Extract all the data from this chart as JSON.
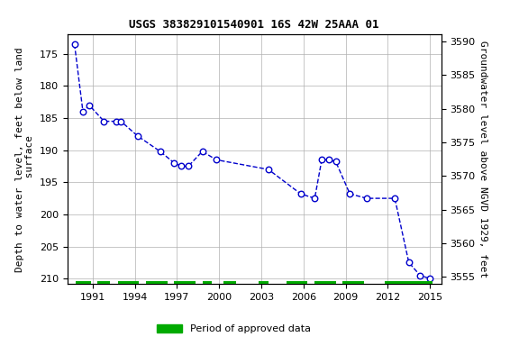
{
  "title": "USGS 383829101540901 16S 42W 25AAA 01",
  "ylabel_left": "Depth to water level, feet below land\n surface",
  "ylabel_right": "Groundwater level above NGVD 1929, feet",
  "data_x": [
    1989.7,
    1990.3,
    1990.75,
    1991.8,
    1992.7,
    1993.0,
    1994.2,
    1995.8,
    1996.8,
    1997.3,
    1997.8,
    1998.8,
    1999.8,
    2003.5,
    2005.8,
    2006.8,
    2007.3,
    2007.8,
    2008.3,
    2009.3,
    2010.5,
    2012.5,
    2013.5,
    2014.3,
    2015.0
  ],
  "data_y": [
    173.5,
    184.0,
    183.0,
    185.5,
    185.5,
    185.5,
    187.8,
    190.2,
    192.0,
    192.5,
    192.5,
    190.2,
    191.5,
    193.0,
    196.8,
    197.5,
    191.5,
    191.5,
    191.8,
    196.8,
    197.5,
    197.5,
    207.5,
    209.5,
    210.0
  ],
  "line_color": "#0000cc",
  "marker_color": "#0000cc",
  "marker_face": "white",
  "ylim_bottom": 210.8,
  "ylim_top": 172.0,
  "xlim": [
    1989.2,
    2015.8
  ],
  "yticks_left": [
    175,
    180,
    185,
    190,
    195,
    200,
    205,
    210
  ],
  "yticks_right": [
    3590,
    3585,
    3580,
    3575,
    3570,
    3565,
    3560,
    3555
  ],
  "xticks": [
    1991,
    1994,
    1997,
    2000,
    2003,
    2006,
    2009,
    2012,
    2015
  ],
  "grid_color": "#b0b0b0",
  "bg_color": "#ffffff",
  "title_fontsize": 9,
  "axis_label_fontsize": 8,
  "tick_fontsize": 8,
  "green_bars": [
    [
      1989.8,
      1990.85
    ],
    [
      1991.3,
      1992.2
    ],
    [
      1992.8,
      1994.3
    ],
    [
      1994.8,
      1996.3
    ],
    [
      1996.8,
      1998.3
    ],
    [
      1998.8,
      1999.5
    ],
    [
      2000.3,
      2001.2
    ],
    [
      2002.8,
      2003.5
    ],
    [
      2004.8,
      2006.3
    ],
    [
      2006.8,
      2008.3
    ],
    [
      2008.8,
      2010.3
    ],
    [
      2011.8,
      2015.2
    ]
  ],
  "green_color": "#00aa00",
  "green_bar_y_top": 210.35,
  "green_bar_y_bot": 210.8
}
